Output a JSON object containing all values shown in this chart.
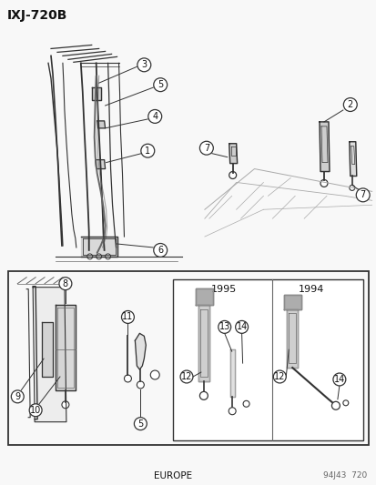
{
  "title": "IXJ-720B",
  "bg_color": "#f5f5f5",
  "line_color": "#333333",
  "dark_color": "#222222",
  "med_color": "#666666",
  "light_color": "#aaaaaa",
  "text_color": "#111111",
  "footer_left": "EUROPE",
  "footer_right": "94J43  720",
  "year_1995": "1995",
  "year_1994": "1994"
}
